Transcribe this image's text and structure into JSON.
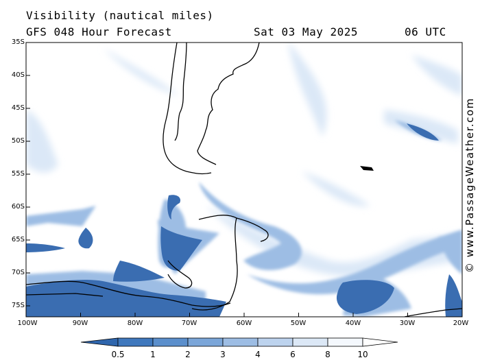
{
  "header": {
    "title": "Visibility (nautical miles)",
    "subtitle": "GFS 048 Hour Forecast",
    "date": "Sat 03 May 2025",
    "time": "06 UTC"
  },
  "credit": "© www.PassageWeather.com",
  "map": {
    "lat_labels": [
      "35S",
      "40S",
      "45S",
      "50S",
      "55S",
      "60S",
      "65S",
      "70S",
      "75S"
    ],
    "lon_labels": [
      "100W",
      "90W",
      "80W",
      "70W",
      "60W",
      "50W",
      "40W",
      "30W",
      "20W"
    ]
  },
  "colorbar": {
    "labels": [
      "0.5",
      "1",
      "2",
      "3",
      "4",
      "6",
      "8",
      "10"
    ],
    "colors": [
      "#2f66ad",
      "#3f78bd",
      "#5b8fcc",
      "#7ba6d9",
      "#9dbde4",
      "#bdd3ee",
      "#dce8f6",
      "#ffffff"
    ]
  },
  "colors": {
    "low_visibility": "#3569ae",
    "medium_visibility": "#8fb3e0",
    "high_visibility": "#d6e5f6",
    "coastline": "#000000"
  }
}
